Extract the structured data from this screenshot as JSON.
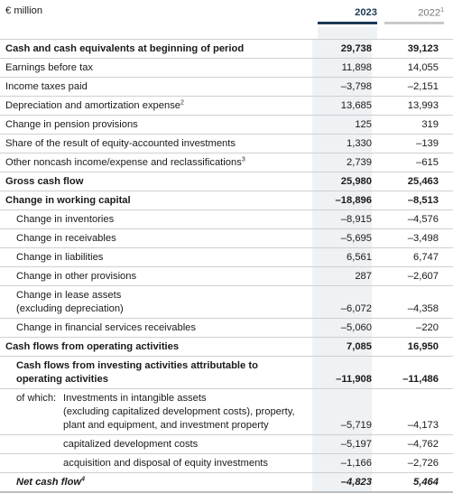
{
  "header": {
    "unit": "€ million",
    "col1": "2023",
    "col2": "2022",
    "col2_note": "1"
  },
  "rows": [
    {
      "label": "Cash and cash equivalents at beginning of period",
      "v2023": "29,738",
      "v2022": "39,123"
    },
    {
      "label": "Earnings before tax",
      "v2023": "11,898",
      "v2022": "14,055"
    },
    {
      "label": "Income taxes paid",
      "v2023": "–3,798",
      "v2022": "–2,151"
    },
    {
      "label": "Depreciation and amortization expense",
      "note": "2",
      "v2023": "13,685",
      "v2022": "13,993"
    },
    {
      "label": "Change in pension provisions",
      "v2023": "125",
      "v2022": "319"
    },
    {
      "label": "Share of the result of equity-accounted investments",
      "v2023": "1,330",
      "v2022": "–139"
    },
    {
      "label": "Other noncash income/expense and reclassifications",
      "note": "3",
      "v2023": "2,739",
      "v2022": "–615"
    },
    {
      "label": "Gross cash flow",
      "v2023": "25,980",
      "v2022": "25,463"
    },
    {
      "label": "Change in working capital",
      "v2023": "–18,896",
      "v2022": "–8,513"
    },
    {
      "label": "Change in inventories",
      "v2023": "–8,915",
      "v2022": "–4,576"
    },
    {
      "label": "Change in receivables",
      "v2023": "–5,695",
      "v2022": "–3,498"
    },
    {
      "label": "Change in liabilities",
      "v2023": "6,561",
      "v2022": "6,747"
    },
    {
      "label": "Change in other provisions",
      "v2023": "287",
      "v2022": "–2,607"
    },
    {
      "label_line1": "Change in lease assets",
      "label_line2": "(excluding depreciation)",
      "v2023": "–6,072",
      "v2022": "–4,358"
    },
    {
      "label": "Change in financial services receivables",
      "v2023": "–5,060",
      "v2022": "–220"
    },
    {
      "label": "Cash flows from operating activities",
      "v2023": "7,085",
      "v2022": "16,950"
    },
    {
      "label_line1": "Cash flows from investing activities attributable to",
      "label_line2": "operating activities",
      "v2023": "–11,908",
      "v2022": "–11,486"
    },
    {
      "prefix": "of which:",
      "text_line1": "Investments in intangible assets",
      "text_line2": "(excluding capitalized development costs), property,",
      "text_line3": "plant and equipment, and investment property",
      "v2023": "–5,719",
      "v2022": "–4,173"
    },
    {
      "label": "capitalized development costs",
      "v2023": "–5,197",
      "v2022": "–4,762"
    },
    {
      "label": "acquisition and disposal of equity investments",
      "v2023": "–1,166",
      "v2022": "–2,726"
    },
    {
      "label": "Net cash flow",
      "note": "4",
      "v2023": "–4,823",
      "v2022": "5,464"
    }
  ]
}
